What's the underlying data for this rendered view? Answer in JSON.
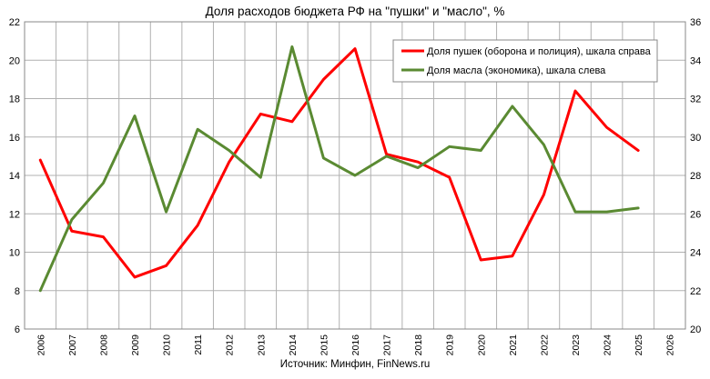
{
  "chart_data": {
    "type": "line",
    "title": "Доля расходов бюджета РФ на \"пушки\" и \"масло\", %",
    "source": "Источник: Минфин, FinNews.ru",
    "categories": [
      "2006",
      "2007",
      "2008",
      "2009",
      "2010",
      "2011",
      "2012",
      "2013",
      "2014",
      "2015",
      "2016",
      "2017",
      "2018",
      "2019",
      "2020",
      "2021",
      "2022",
      "2023",
      "2024",
      "2025",
      "2026"
    ],
    "left_axis": {
      "ylim": [
        6,
        22
      ],
      "ticks": [
        6,
        8,
        10,
        12,
        14,
        16,
        18,
        20,
        22
      ]
    },
    "right_axis": {
      "ylim": [
        20,
        36
      ],
      "ticks": [
        20,
        22,
        24,
        26,
        28,
        30,
        32,
        34,
        36
      ]
    },
    "grid": true,
    "legend_position": "top-right",
    "series": [
      {
        "name": "Доля пушек (оборона и полиция), шкала справа",
        "axis": "right",
        "color": "#ff0000",
        "values": [
          28.8,
          25.1,
          24.8,
          22.7,
          23.3,
          25.4,
          28.7,
          31.2,
          30.8,
          33.0,
          34.6,
          29.1,
          28.7,
          27.9,
          23.6,
          23.8,
          27.0,
          32.4,
          30.5,
          29.3,
          null
        ]
      },
      {
        "name": "Доля масла (экономика), шкала слева",
        "axis": "left",
        "color": "#5a8a32",
        "values": [
          8.0,
          11.7,
          13.6,
          17.1,
          12.1,
          16.4,
          15.3,
          13.9,
          20.7,
          14.9,
          14.0,
          15.0,
          14.4,
          15.5,
          15.3,
          17.6,
          15.6,
          12.1,
          12.1,
          12.3,
          null
        ]
      }
    ]
  }
}
